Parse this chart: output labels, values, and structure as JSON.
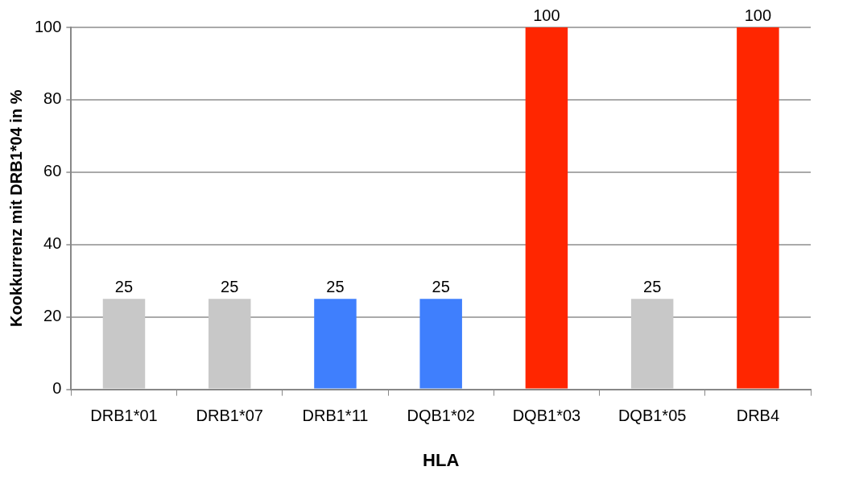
{
  "chart_data": {
    "type": "bar",
    "xlabel": "HLA",
    "ylabel": "Kookkurrenz mit DRB1*04 in %",
    "categories": [
      "DRB1*01",
      "DRB1*07",
      "DRB1*11",
      "DQB1*02",
      "DQB1*03",
      "DQB1*05",
      "DRB4"
    ],
    "values": [
      25,
      25,
      25,
      25,
      100,
      25,
      100
    ],
    "colors": [
      "#c8c8c8",
      "#c8c8c8",
      "#3f7ffd",
      "#3f7ffd",
      "#ff2600",
      "#c8c8c8",
      "#ff2600"
    ],
    "ylim": [
      0,
      100
    ],
    "yticks": [
      0,
      20,
      40,
      60,
      80,
      100
    ],
    "grid": "y",
    "legend": false,
    "data_labels": true
  }
}
